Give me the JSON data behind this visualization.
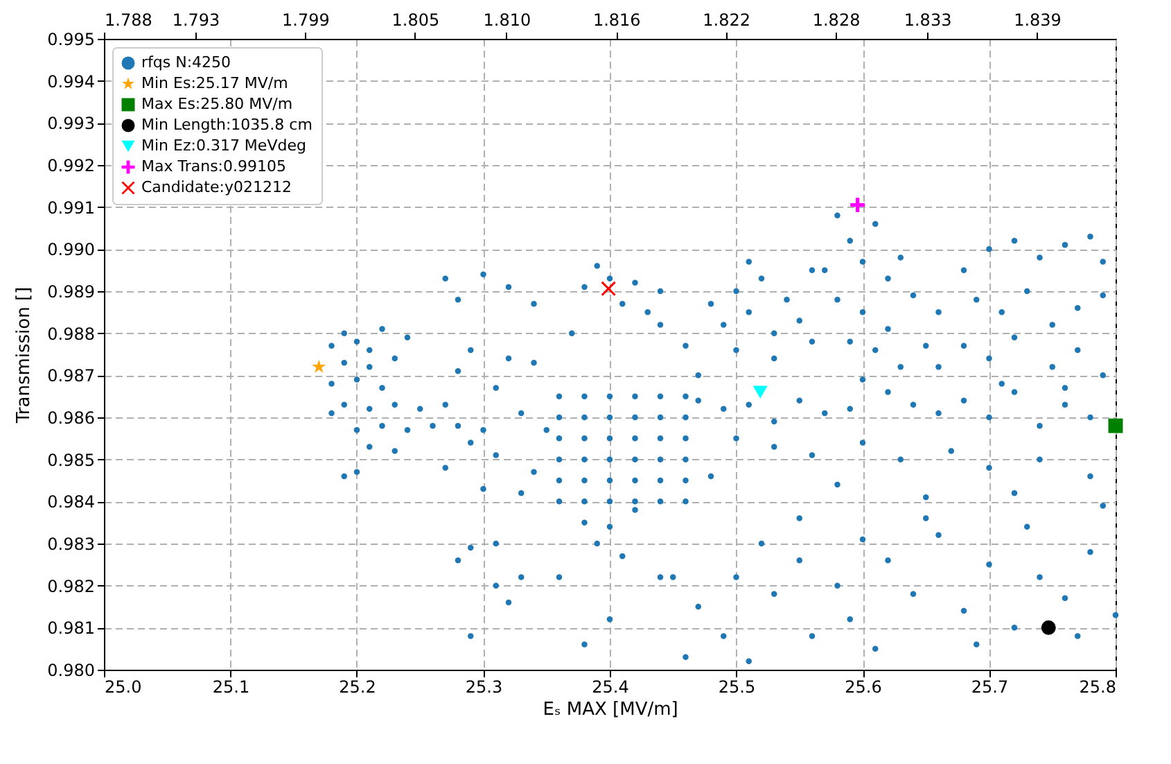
{
  "chart_data": {
    "type": "scatter",
    "xlabel": "Eₛ MAX [MV/m]",
    "ylabel": "Transmission []",
    "xlim": [
      25.0,
      25.8
    ],
    "xticks": [
      {
        "value": 25,
        "label": "25.0"
      },
      25.1,
      25.2,
      25.3,
      25.4,
      25.5,
      25.6,
      25.7,
      25.8
    ],
    "ylim": [
      0.98,
      0.995
    ],
    "yticks": [
      {
        "value": 0.98,
        "label": "0.980"
      },
      0.981,
      0.982,
      0.983,
      0.984,
      0.985,
      0.986,
      0.987,
      0.988,
      0.989,
      {
        "value": 0.99,
        "label": "0.990"
      },
      0.991,
      0.992,
      0.993,
      0.994,
      0.995
    ],
    "x2lim": [
      1.788,
      1.8433
    ],
    "x2ticks": [
      1.788,
      1.793,
      1.799,
      1.805,
      {
        "value": 1.81,
        "label": "1.810"
      },
      1.816,
      1.822,
      1.828,
      1.833,
      1.839
    ],
    "grid": true,
    "legend": "top left",
    "series": [
      {
        "name": "rfqs N:4250",
        "type": "scatter",
        "marker": "circle",
        "color": "#1f77b4",
        "x": [
          25.18,
          25.19,
          25.2,
          25.21,
          25.22,
          25.19,
          25.21,
          25.2,
          25.18,
          25.22,
          25.23,
          25.24,
          25.19,
          25.21,
          25.23,
          25.25,
          25.22,
          25.24,
          25.26,
          25.2,
          25.21,
          25.23,
          25.19,
          25.2,
          25.18,
          25.27,
          25.3,
          25.29,
          25.32,
          25.28,
          25.31,
          25.34,
          25.27,
          25.28,
          25.3,
          25.33,
          25.29,
          25.31,
          25.35,
          25.27,
          25.3,
          25.33,
          25.34,
          25.29,
          25.31,
          25.28,
          25.31,
          25.32,
          25.29,
          25.33,
          25.28,
          25.32,
          25.34,
          25.36,
          25.36,
          25.36,
          25.36,
          25.36,
          25.36,
          25.38,
          25.38,
          25.38,
          25.38,
          25.38,
          25.38,
          25.4,
          25.4,
          25.4,
          25.4,
          25.4,
          25.4,
          25.42,
          25.42,
          25.42,
          25.42,
          25.42,
          25.42,
          25.44,
          25.44,
          25.44,
          25.44,
          25.44,
          25.44,
          25.46,
          25.46,
          25.46,
          25.46,
          25.46,
          25.46,
          25.38,
          25.4,
          25.42,
          25.39,
          25.41,
          25.44,
          25.4,
          25.36,
          25.38,
          25.38,
          25.4,
          25.42,
          25.44,
          25.41,
          25.43,
          25.39,
          25.44,
          25.37,
          25.46,
          25.48,
          25.5,
          25.52,
          25.54,
          25.56,
          25.49,
          25.51,
          25.53,
          25.55,
          25.5,
          25.53,
          25.56,
          25.51,
          25.47,
          25.47,
          25.49,
          25.51,
          25.53,
          25.55,
          25.57,
          25.59,
          25.62,
          25.64,
          25.66,
          25.68,
          25.7,
          25.72,
          25.74,
          25.76,
          25.78,
          25.5,
          25.53,
          25.56,
          25.6,
          25.63,
          25.67,
          25.7,
          25.74,
          25.78,
          25.48,
          25.58,
          25.65,
          25.72,
          25.79,
          25.57,
          25.59,
          25.61,
          25.63,
          25.6,
          25.62,
          25.58,
          25.6,
          25.62,
          25.64,
          25.61,
          25.63,
          25.6,
          25.59,
          25.65,
          25.58,
          25.66,
          25.68,
          25.7,
          25.72,
          25.74,
          25.76,
          25.78,
          25.79,
          25.69,
          25.71,
          25.73,
          25.75,
          25.77,
          25.79,
          25.68,
          25.7,
          25.72,
          25.75,
          25.77,
          25.79,
          25.71,
          25.76,
          25.66,
          25.45,
          25.47,
          25.49,
          25.5,
          25.52,
          25.53,
          25.55,
          25.56,
          25.58,
          25.59,
          25.61,
          25.62,
          25.64,
          25.66,
          25.68,
          25.7,
          25.72,
          25.74,
          25.76,
          25.78,
          25.8,
          25.73,
          25.65,
          25.55,
          25.51,
          25.6,
          25.77,
          25.69,
          25.46
        ],
        "values": [
          0.9877,
          0.988,
          0.9878,
          0.9876,
          0.9881,
          0.9873,
          0.9872,
          0.9869,
          0.9868,
          0.9867,
          0.9874,
          0.9879,
          0.9863,
          0.9862,
          0.9863,
          0.9862,
          0.9858,
          0.9857,
          0.9858,
          0.9857,
          0.9853,
          0.9852,
          0.9846,
          0.9847,
          0.9861,
          0.9893,
          0.9894,
          0.9876,
          0.9874,
          0.9871,
          0.9867,
          0.9873,
          0.9863,
          0.9858,
          0.9857,
          0.9861,
          0.9854,
          0.9851,
          0.9857,
          0.9848,
          0.9843,
          0.9842,
          0.9847,
          0.9829,
          0.983,
          0.9826,
          0.982,
          0.9816,
          0.9808,
          0.9822,
          0.9888,
          0.9891,
          0.9887,
          0.9865,
          0.986,
          0.9855,
          0.985,
          0.9845,
          0.984,
          0.9865,
          0.986,
          0.9855,
          0.985,
          0.9845,
          0.984,
          0.9865,
          0.986,
          0.9855,
          0.985,
          0.9845,
          0.984,
          0.9865,
          0.986,
          0.9855,
          0.985,
          0.9845,
          0.984,
          0.9865,
          0.986,
          0.9855,
          0.985,
          0.9845,
          0.984,
          0.9865,
          0.986,
          0.9855,
          0.985,
          0.9845,
          0.984,
          0.9835,
          0.9834,
          0.9838,
          0.983,
          0.9827,
          0.9822,
          0.9812,
          0.9822,
          0.9806,
          0.9891,
          0.9893,
          0.9892,
          0.989,
          0.9887,
          0.9885,
          0.9896,
          0.9882,
          0.988,
          0.9877,
          0.9887,
          0.989,
          0.9893,
          0.9888,
          0.9895,
          0.9882,
          0.9885,
          0.988,
          0.9883,
          0.9876,
          0.9874,
          0.9878,
          0.9897,
          0.987,
          0.9864,
          0.9862,
          0.9863,
          0.9859,
          0.9864,
          0.9861,
          0.9862,
          0.9866,
          0.9863,
          0.9861,
          0.9864,
          0.986,
          0.9866,
          0.9858,
          0.9863,
          0.986,
          0.9855,
          0.9853,
          0.9851,
          0.9854,
          0.985,
          0.9852,
          0.9848,
          0.985,
          0.9846,
          0.9846,
          0.9844,
          0.9841,
          0.9842,
          0.9839,
          0.9895,
          0.9902,
          0.9906,
          0.9898,
          0.9897,
          0.9893,
          0.9888,
          0.9885,
          0.9881,
          0.9889,
          0.9876,
          0.9872,
          0.9869,
          0.9878,
          0.9877,
          0.9908,
          0.9885,
          0.9895,
          0.99,
          0.9902,
          0.9898,
          0.9901,
          0.9903,
          0.9897,
          0.9888,
          0.9885,
          0.989,
          0.9882,
          0.9886,
          0.9889,
          0.9877,
          0.9874,
          0.9879,
          0.9872,
          0.9876,
          0.987,
          0.9868,
          0.9867,
          0.9872,
          0.9822,
          0.9815,
          0.9808,
          0.9822,
          0.983,
          0.9818,
          0.9826,
          0.9808,
          0.982,
          0.9812,
          0.9805,
          0.9826,
          0.9818,
          0.9832,
          0.9814,
          0.9825,
          0.981,
          0.9822,
          0.9817,
          0.9828,
          0.9813,
          0.9834,
          0.9836,
          0.9836,
          0.9802,
          0.9831,
          0.9808,
          0.9806,
          0.9803
        ]
      },
      {
        "name": "Min Es:25.17 MV/m",
        "type": "scatter",
        "marker": "star",
        "color": "#ffa500",
        "x": [
          25.17
        ],
        "values": [
          0.9872
        ]
      },
      {
        "name": "Max Es:25.80 MV/m",
        "type": "scatter",
        "marker": "square",
        "color": "#008000",
        "x": [
          25.8
        ],
        "values": [
          0.9858
        ]
      },
      {
        "name": "Min Length:1035.8 cm",
        "type": "scatter",
        "marker": "circle",
        "color": "#000000",
        "x": [
          25.747
        ],
        "values": [
          0.981
        ]
      },
      {
        "name": "Min Ez:0.317 MeVdeg",
        "type": "scatter",
        "marker": "triangle",
        "color": "#00ffff",
        "x": [
          25.519
        ],
        "values": [
          0.9866
        ]
      },
      {
        "name": "Max Trans:0.99105",
        "type": "scatter",
        "marker": "plus",
        "color": "#ff00ff",
        "x": [
          25.596
        ],
        "values": [
          0.99105
        ]
      },
      {
        "name": "Candidate:y021212",
        "type": "scatter",
        "marker": "cross",
        "color": "#ff0000",
        "x": [
          25.399
        ],
        "values": [
          0.98906
        ]
      }
    ]
  }
}
